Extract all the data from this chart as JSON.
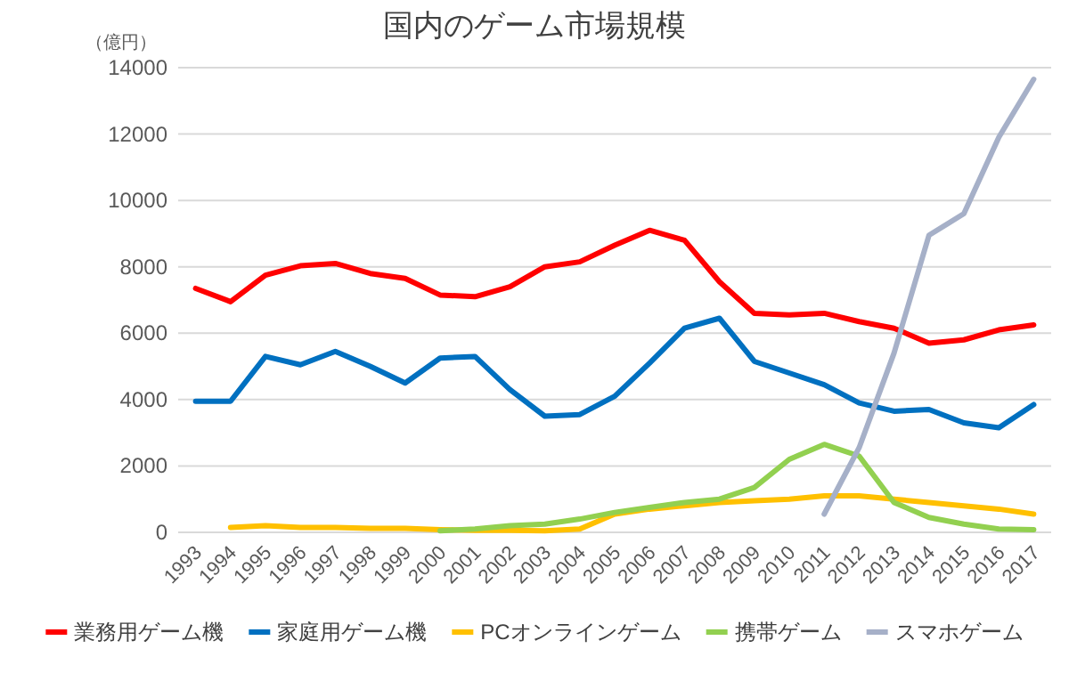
{
  "chart_data": {
    "type": "line",
    "title": "国内のゲーム市場規模",
    "ylabel": "（億円）",
    "categories": [
      "1993",
      "1994",
      "1995",
      "1996",
      "1997",
      "1998",
      "1999",
      "2000",
      "2001",
      "2002",
      "2003",
      "2004",
      "2005",
      "2006",
      "2007",
      "2008",
      "2009",
      "2010",
      "2011",
      "2012",
      "2013",
      "2014",
      "2015",
      "2016",
      "2017"
    ],
    "series": [
      {
        "name": "業務用ゲーム機",
        "color": "#ff0000",
        "values": [
          7350,
          6950,
          7750,
          8030,
          8100,
          7800,
          7650,
          7150,
          7100,
          7400,
          8000,
          8150,
          8650,
          9100,
          8800,
          7550,
          6600,
          6550,
          6600,
          6350,
          6150,
          5700,
          5800,
          6100,
          6250
        ]
      },
      {
        "name": "家庭用ゲーム機",
        "color": "#0070c0",
        "values": [
          3950,
          3950,
          5300,
          5050,
          5450,
          5000,
          4500,
          5250,
          5300,
          4300,
          3500,
          3550,
          4100,
          5100,
          6150,
          6450,
          5150,
          4800,
          4450,
          3900,
          3650,
          3700,
          3300,
          3150,
          3850
        ]
      },
      {
        "name": "PCオンラインゲーム",
        "color": "#ffc000",
        "values": [
          null,
          150,
          200,
          150,
          150,
          120,
          120,
          80,
          60,
          60,
          50,
          100,
          550,
          700,
          800,
          900,
          950,
          1000,
          1100,
          1100,
          1000,
          900,
          800,
          700,
          550
        ]
      },
      {
        "name": "携帯ゲーム",
        "color": "#92d050",
        "values": [
          null,
          null,
          null,
          null,
          null,
          null,
          null,
          50,
          100,
          200,
          250,
          400,
          600,
          750,
          900,
          1000,
          1350,
          2200,
          2650,
          2300,
          900,
          450,
          250,
          100,
          80
        ]
      },
      {
        "name": "スマホゲーム",
        "color": "#a6b0c8",
        "values": [
          null,
          null,
          null,
          null,
          null,
          null,
          null,
          null,
          null,
          null,
          null,
          null,
          null,
          null,
          null,
          null,
          null,
          null,
          550,
          2550,
          5400,
          8950,
          9600,
          11900,
          13650
        ]
      }
    ],
    "ylim": [
      0,
      14000
    ],
    "yticks": [
      0,
      2000,
      4000,
      6000,
      8000,
      10000,
      12000,
      14000
    ],
    "grid": "y",
    "legend": "bottom",
    "marker": "none",
    "line_style": "solid"
  }
}
